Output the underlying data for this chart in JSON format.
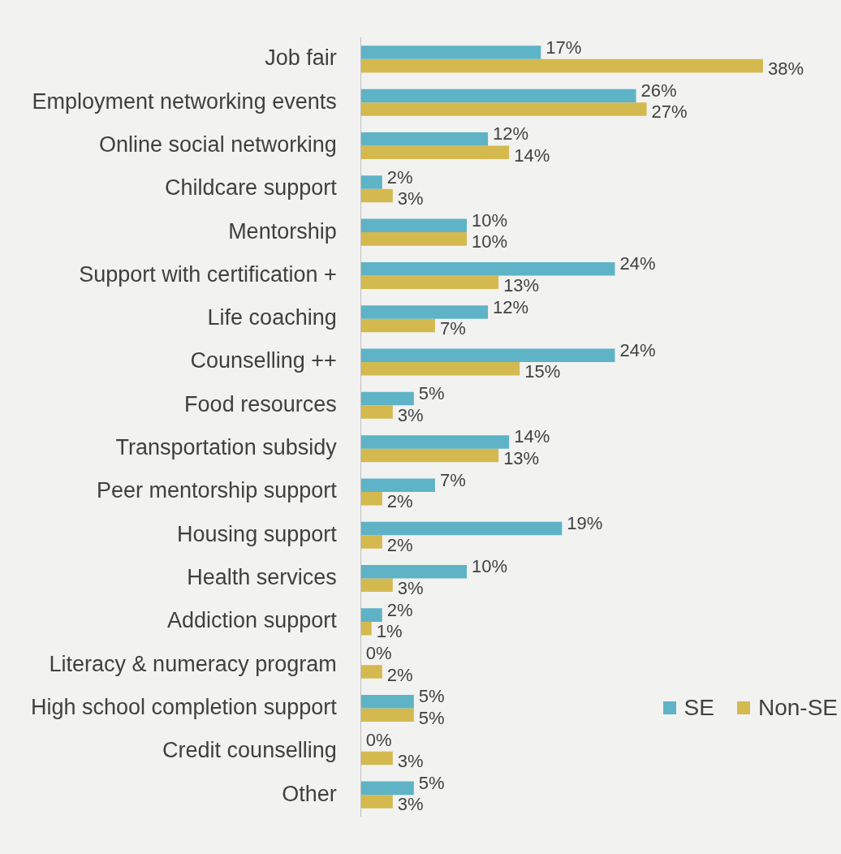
{
  "chart_data": {
    "type": "bar",
    "orientation": "horizontal",
    "categories": [
      "Job fair",
      "Employment networking events",
      "Online social networking",
      "Childcare support",
      "Mentorship",
      "Support with certification +",
      "Life coaching",
      "Counselling ++",
      "Food resources",
      "Transportation subsidy",
      "Peer mentorship support",
      "Housing support",
      "Health services",
      "Addiction support",
      "Literacy & numeracy program",
      "High school completion support",
      "Credit counselling",
      "Other"
    ],
    "series": [
      {
        "name": "SE",
        "color": "#5fb3c6",
        "values": [
          17,
          26,
          12,
          2,
          10,
          24,
          12,
          24,
          5,
          14,
          7,
          19,
          10,
          2,
          0,
          5,
          0,
          5
        ],
        "value_labels": [
          "17%",
          "26%",
          "12%",
          "2%",
          "10%",
          "24%",
          "12%",
          "24%",
          "5%",
          "14%",
          "7%",
          "19%",
          "10%",
          "2%",
          "0%",
          "5%",
          "0%",
          "5%"
        ]
      },
      {
        "name": "Non-SE",
        "color": "#d4b94f",
        "values": [
          38,
          27,
          14,
          3,
          10,
          13,
          7,
          15,
          3,
          13,
          2,
          2,
          3,
          1,
          2,
          5,
          3,
          3
        ],
        "value_labels": [
          "38%",
          "27%",
          "14%",
          "3%",
          "10%",
          "13%",
          "7%",
          "15%",
          "3%",
          "13%",
          "2%",
          "2%",
          "3%",
          "1%",
          "2%",
          "5%",
          "3%",
          "3%"
        ]
      }
    ],
    "legend": "bottom right",
    "grid": false
  }
}
